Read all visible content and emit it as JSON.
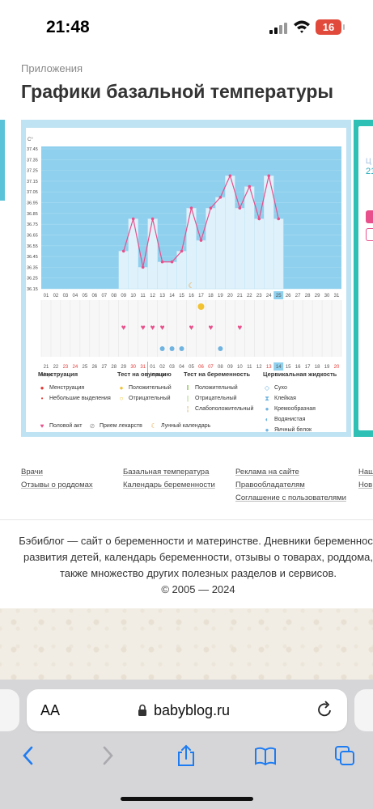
{
  "status_bar": {
    "time": "21:48",
    "battery": "16"
  },
  "breadcrumb": "Приложения",
  "page_title": "Графики базальной температуры",
  "right_panel": {
    "text1": "Ц",
    "text2": "21"
  },
  "chart_data": {
    "type": "area",
    "unit_label": "C°",
    "y_ticks": [
      "37.45",
      "37.35",
      "37.25",
      "37.15",
      "37.05",
      "36.95",
      "36.85",
      "36.75",
      "36.65",
      "36.55",
      "36.45",
      "36.35",
      "36.25",
      "36.15"
    ],
    "ylim": [
      36.15,
      37.45
    ],
    "x_days": [
      "01",
      "02",
      "03",
      "04",
      "05",
      "06",
      "07",
      "08",
      "09",
      "10",
      "11",
      "12",
      "13",
      "14",
      "15",
      "16",
      "17",
      "18",
      "19",
      "20",
      "21",
      "22",
      "23",
      "24",
      "25",
      "26",
      "27",
      "28",
      "29",
      "30",
      "31"
    ],
    "highlight_day": "25",
    "series": [
      {
        "x": [
          "09",
          "10",
          "11",
          "12",
          "13",
          "14",
          "15",
          "16",
          "17",
          "18",
          "19",
          "20",
          "21",
          "22",
          "23",
          "24",
          "25"
        ],
        "values": [
          36.5,
          36.8,
          36.35,
          36.8,
          36.4,
          36.4,
          36.5,
          36.9,
          36.6,
          36.9,
          37.0,
          37.2,
          36.9,
          37.1,
          36.8,
          37.2,
          36.8
        ]
      }
    ],
    "ovulation_test_day": "17",
    "intercourse_days": [
      "09",
      "11",
      "12",
      "13",
      "16",
      "18",
      "21"
    ],
    "fluid_days": [
      "13",
      "14",
      "15",
      "19"
    ],
    "moon_day": "16",
    "calendar_dates": [
      "21",
      "22",
      "23",
      "24",
      "25",
      "26",
      "27",
      "28",
      "29",
      "30",
      "31",
      "01",
      "02",
      "03",
      "04",
      "05",
      "06",
      "07",
      "08",
      "09",
      "10",
      "11",
      "12",
      "13",
      "14",
      "15",
      "16",
      "17",
      "18",
      "19",
      "20"
    ],
    "calendar_red_days": [
      "23",
      "24",
      "30",
      "31",
      "06",
      "07",
      "13",
      "20"
    ],
    "calendar_highlight": "14",
    "month_start": "Март",
    "month_next": "Апрель"
  },
  "legend": {
    "menstruation": {
      "title": "Менструация",
      "items": [
        "Менструация",
        "Небольшие выделения"
      ]
    },
    "ovulation_test": {
      "title": "Тест на овуляцию",
      "items": [
        "Положительный",
        "Отрицательный"
      ]
    },
    "pregnancy_test": {
      "title": "Тест на беременность",
      "items": [
        "Положительный",
        "Отрицательный",
        "Слабоположительный"
      ]
    },
    "cervical": {
      "title": "Цервикальная жидкость",
      "items": [
        "Сухо",
        "Клейкая",
        "Кремообразная",
        "Водянистая",
        "Яичный белок"
      ]
    },
    "bottom": [
      "Половой акт",
      "Прием лекарств",
      "Лунный календарь"
    ]
  },
  "footer": {
    "col1": [
      "Врачи",
      "Отзывы о роддомах"
    ],
    "col2": [
      "Базальная температура",
      "Календарь беременности"
    ],
    "col3": [
      "Реклама на сайте",
      "Правообладателям",
      "Соглашение с пользователями"
    ],
    "col4": [
      "Наш",
      "Нов"
    ]
  },
  "about": {
    "lines": [
      "Бэбиблог — сайт о беременности и материнстве. Дневники беременност",
      "развития детей, календарь беременности, отзывы о товарах, роддома, ",
      "также множество других полезных разделов и сервисов.",
      "© 2005 — 2024"
    ]
  },
  "browser": {
    "aa_label": "AA",
    "url": "babyblog.ru"
  },
  "colors": {
    "accent_teal": "#2ec0b5",
    "chart_blue": "#8fd0ee",
    "line_pink": "#e8508c",
    "heart_pink": "#e8508c"
  }
}
